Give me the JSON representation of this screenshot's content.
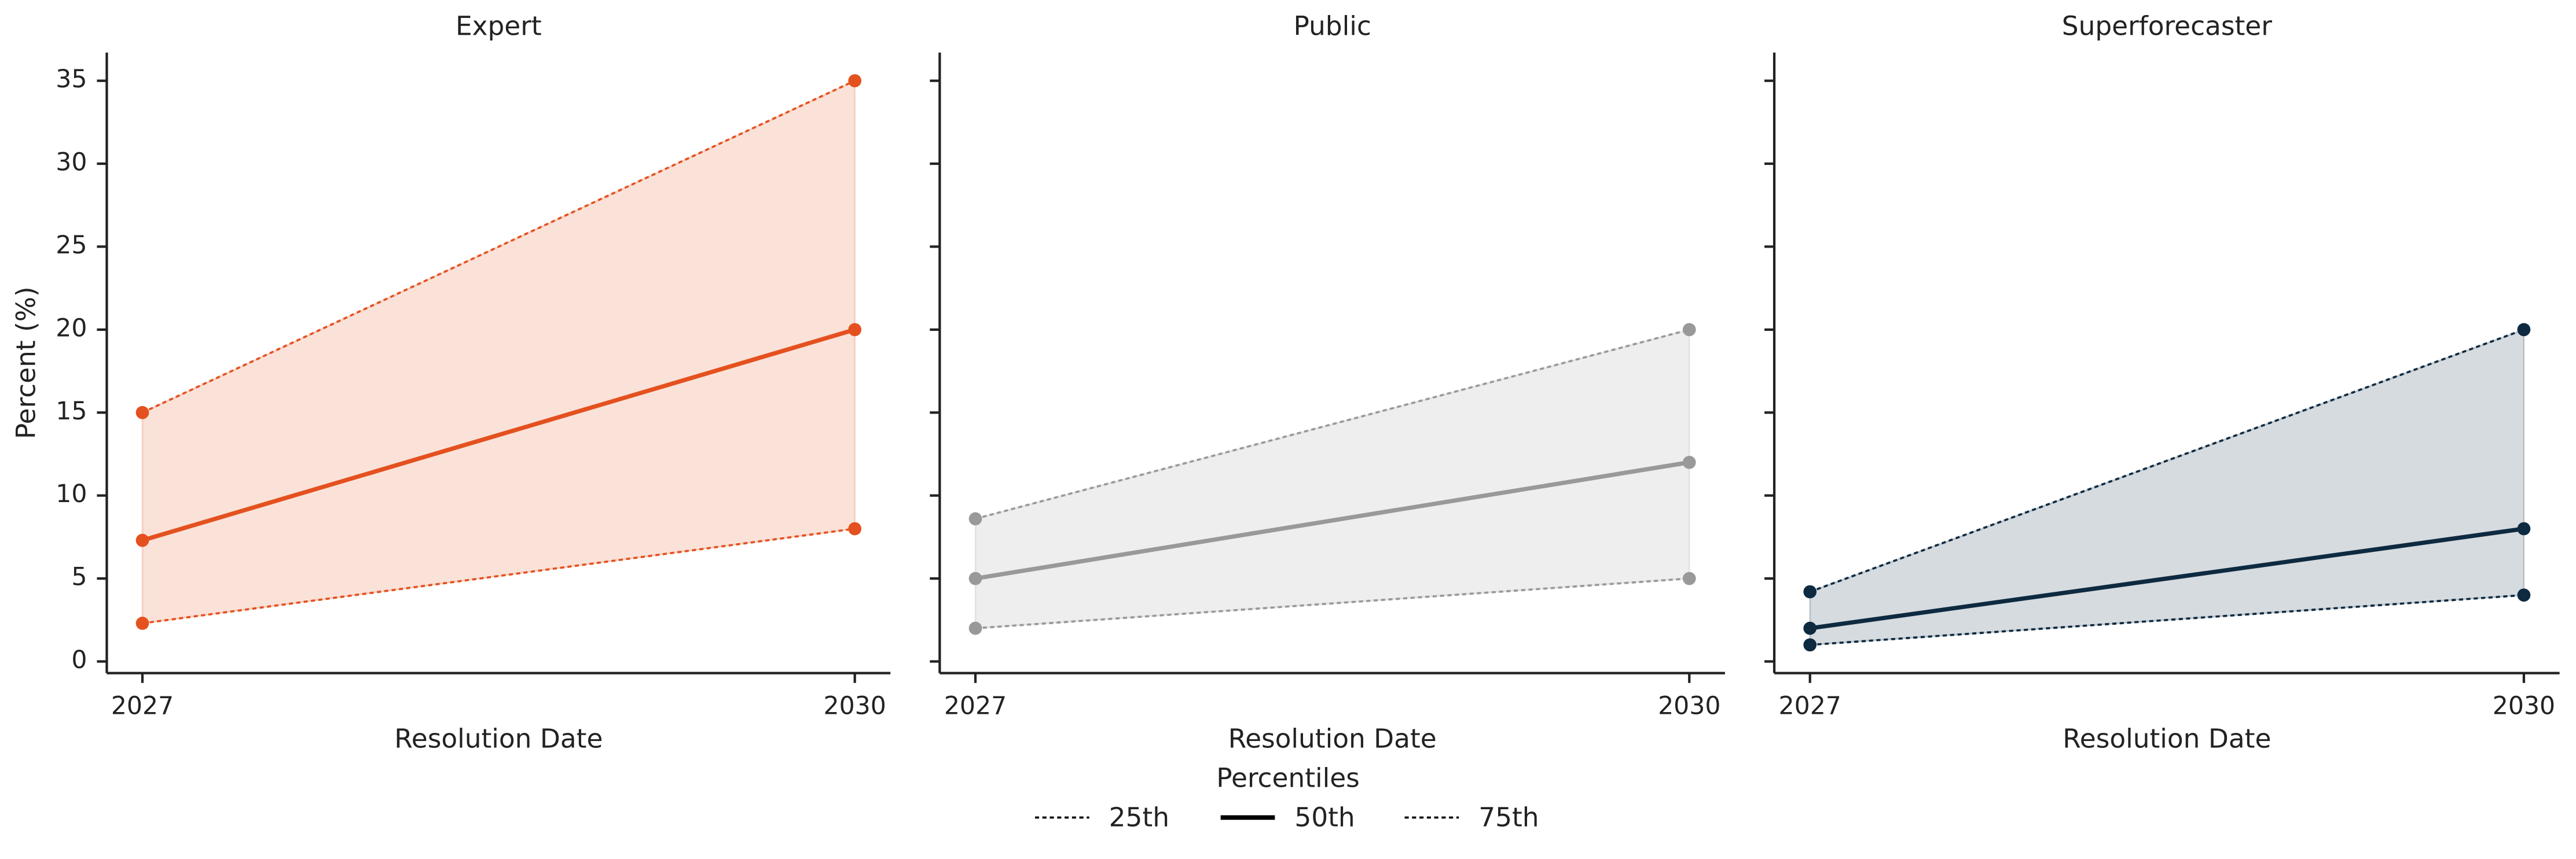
{
  "chart_data": [
    {
      "type": "line",
      "title": "Expert",
      "xlabel": "Resolution Date",
      "ylabel": "Percent (%)",
      "x": [
        2027,
        2030
      ],
      "xlim": [
        2026.85,
        2030.15
      ],
      "xticks": [
        2027,
        2030
      ],
      "ylim": [
        -0.7,
        36.7
      ],
      "yticks": [
        0,
        5,
        10,
        15,
        20,
        25,
        30,
        35
      ],
      "band": true,
      "series": [
        {
          "name": "25th",
          "color": "#e4511f",
          "linestyle": "dotted",
          "values": [
            2.3,
            8
          ]
        },
        {
          "name": "50th",
          "color": "#e4511f",
          "linestyle": "solid",
          "values": [
            7.3,
            20
          ]
        },
        {
          "name": "75th",
          "color": "#e4511f",
          "linestyle": "dotted",
          "values": [
            15,
            35
          ]
        }
      ]
    },
    {
      "type": "line",
      "title": "Public",
      "xlabel": "Resolution Date",
      "x": [
        2027,
        2030
      ],
      "xlim": [
        2026.85,
        2030.15
      ],
      "xticks": [
        2027,
        2030
      ],
      "ylim": [
        -0.7,
        36.7
      ],
      "yticks": [
        0,
        5,
        10,
        15,
        20,
        25,
        30,
        35
      ],
      "band": true,
      "series": [
        {
          "name": "25th",
          "color": "#999999",
          "linestyle": "dotted",
          "values": [
            2,
            5
          ]
        },
        {
          "name": "50th",
          "color": "#999999",
          "linestyle": "solid",
          "values": [
            5,
            12
          ]
        },
        {
          "name": "75th",
          "color": "#999999",
          "linestyle": "dotted",
          "values": [
            8.6,
            20
          ]
        }
      ]
    },
    {
      "type": "line",
      "title": "Superforecaster",
      "xlabel": "Resolution Date",
      "x": [
        2027,
        2030
      ],
      "xlim": [
        2026.85,
        2030.15
      ],
      "xticks": [
        2027,
        2030
      ],
      "ylim": [
        -0.7,
        36.7
      ],
      "yticks": [
        0,
        5,
        10,
        15,
        20,
        25,
        30,
        35
      ],
      "band": true,
      "series": [
        {
          "name": "25th",
          "color": "#0e2a40",
          "linestyle": "dotted",
          "values": [
            1,
            4
          ]
        },
        {
          "name": "50th",
          "color": "#0e2a40",
          "linestyle": "solid",
          "values": [
            2,
            8
          ]
        },
        {
          "name": "75th",
          "color": "#0e2a40",
          "linestyle": "dotted",
          "values": [
            4.2,
            20
          ]
        }
      ]
    }
  ],
  "legend_title": "Percentiles",
  "legend_color": "#000000"
}
